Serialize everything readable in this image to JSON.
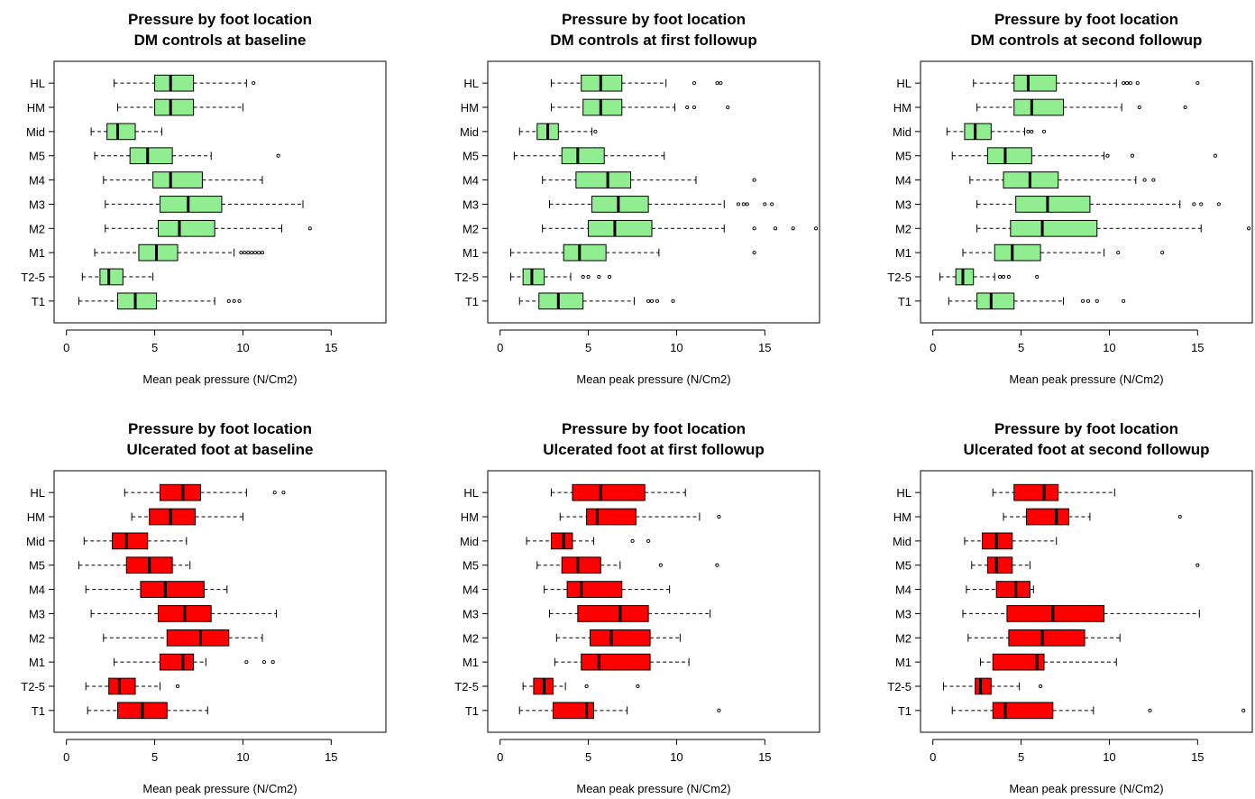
{
  "chart_data": [
    {
      "type": "boxplot",
      "orientation": "horizontal",
      "title": [
        "Pressure by foot location",
        "DM controls at baseline"
      ],
      "xlabel": "Mean peak pressure (N/Cm2)",
      "xlim": [
        -0.7,
        18.1
      ],
      "xticks": [
        0,
        5,
        10,
        15
      ],
      "fill": "#90ee90",
      "categories": [
        "HL",
        "HM",
        "Mid",
        "M5",
        "M4",
        "M3",
        "M2",
        "M1",
        "T2-5",
        "T1"
      ],
      "boxes": [
        {
          "whislo": 2.7,
          "q1": 5.0,
          "med": 5.9,
          "q3": 7.2,
          "whishi": 10.2,
          "fliers": [
            10.6
          ]
        },
        {
          "whislo": 2.9,
          "q1": 5.0,
          "med": 5.9,
          "q3": 7.2,
          "whishi": 10.0,
          "fliers": []
        },
        {
          "whislo": 1.4,
          "q1": 2.3,
          "med": 2.9,
          "q3": 3.9,
          "whishi": 5.4,
          "fliers": []
        },
        {
          "whislo": 1.6,
          "q1": 3.6,
          "med": 4.6,
          "q3": 6.0,
          "whishi": 8.2,
          "fliers": [
            12.0
          ]
        },
        {
          "whislo": 2.1,
          "q1": 4.9,
          "med": 5.9,
          "q3": 7.7,
          "whishi": 11.1,
          "fliers": []
        },
        {
          "whislo": 2.2,
          "q1": 5.3,
          "med": 6.9,
          "q3": 8.8,
          "whishi": 13.4,
          "fliers": []
        },
        {
          "whislo": 2.2,
          "q1": 5.2,
          "med": 6.4,
          "q3": 8.4,
          "whishi": 12.2,
          "fliers": [
            13.8
          ]
        },
        {
          "whislo": 1.6,
          "q1": 4.1,
          "med": 5.1,
          "q3": 6.3,
          "whishi": 9.5,
          "fliers": [
            9.9,
            10.1,
            10.3,
            10.5,
            10.7,
            10.9,
            11.1
          ]
        },
        {
          "whislo": 0.9,
          "q1": 1.9,
          "med": 2.4,
          "q3": 3.2,
          "whishi": 4.9,
          "fliers": []
        },
        {
          "whislo": 0.7,
          "q1": 2.9,
          "med": 3.9,
          "q3": 5.1,
          "whishi": 8.4,
          "fliers": [
            9.2,
            9.5,
            9.8
          ]
        }
      ]
    },
    {
      "type": "boxplot",
      "orientation": "horizontal",
      "title": [
        "Pressure by foot location",
        "DM controls at first followup"
      ],
      "xlabel": "Mean peak pressure (N/Cm2)",
      "xlim": [
        -0.7,
        18.1
      ],
      "xticks": [
        0,
        5,
        10,
        15
      ],
      "fill": "#90ee90",
      "categories": [
        "HL",
        "HM",
        "Mid",
        "M5",
        "M4",
        "M3",
        "M2",
        "M1",
        "T2-5",
        "T1"
      ],
      "boxes": [
        {
          "whislo": 2.9,
          "q1": 4.6,
          "med": 5.7,
          "q3": 6.9,
          "whishi": 9.4,
          "fliers": [
            11.0,
            12.3,
            12.5
          ]
        },
        {
          "whislo": 2.9,
          "q1": 4.7,
          "med": 5.7,
          "q3": 6.9,
          "whishi": 9.9,
          "fliers": [
            10.6,
            11.0,
            12.9
          ]
        },
        {
          "whislo": 1.1,
          "q1": 2.1,
          "med": 2.7,
          "q3": 3.3,
          "whishi": 5.2,
          "fliers": [
            5.4
          ]
        },
        {
          "whislo": 0.8,
          "q1": 3.5,
          "med": 4.4,
          "q3": 5.9,
          "whishi": 9.3,
          "fliers": []
        },
        {
          "whislo": 2.4,
          "q1": 4.3,
          "med": 6.1,
          "q3": 7.4,
          "whishi": 11.1,
          "fliers": [
            14.4
          ]
        },
        {
          "whislo": 2.8,
          "q1": 5.2,
          "med": 6.7,
          "q3": 8.4,
          "whishi": 12.7,
          "fliers": [
            13.5,
            13.8,
            14.0,
            15.0,
            15.4
          ]
        },
        {
          "whislo": 2.4,
          "q1": 5.0,
          "med": 6.5,
          "q3": 8.6,
          "whishi": 12.7,
          "fliers": [
            14.4,
            15.6,
            16.6,
            17.9
          ]
        },
        {
          "whislo": 0.6,
          "q1": 3.6,
          "med": 4.5,
          "q3": 6.0,
          "whishi": 9.0,
          "fliers": [
            14.4
          ]
        },
        {
          "whislo": 0.6,
          "q1": 1.3,
          "med": 1.8,
          "q3": 2.5,
          "whishi": 4.0,
          "fliers": [
            4.7,
            5.0,
            5.6,
            6.2
          ]
        },
        {
          "whislo": 1.1,
          "q1": 2.2,
          "med": 3.3,
          "q3": 4.7,
          "whishi": 7.6,
          "fliers": [
            8.4,
            8.6,
            8.9,
            9.8
          ]
        }
      ]
    },
    {
      "type": "boxplot",
      "orientation": "horizontal",
      "title": [
        "Pressure by foot location",
        "DM controls at second followup"
      ],
      "xlabel": "Mean peak pressure (N/Cm2)",
      "xlim": [
        -0.7,
        18.1
      ],
      "xticks": [
        0,
        5,
        10,
        15
      ],
      "fill": "#90ee90",
      "categories": [
        "HL",
        "HM",
        "Mid",
        "M5",
        "M4",
        "M3",
        "M2",
        "M1",
        "T2-5",
        "T1"
      ],
      "boxes": [
        {
          "whislo": 2.3,
          "q1": 4.6,
          "med": 5.4,
          "q3": 7.0,
          "whishi": 10.4,
          "fliers": [
            10.8,
            11.0,
            11.2,
            11.6,
            15.0
          ]
        },
        {
          "whislo": 2.5,
          "q1": 4.6,
          "med": 5.6,
          "q3": 7.4,
          "whishi": 10.7,
          "fliers": [
            11.7,
            14.3
          ]
        },
        {
          "whislo": 0.8,
          "q1": 1.8,
          "med": 2.4,
          "q3": 3.3,
          "whishi": 5.2,
          "fliers": [
            5.4,
            5.6,
            6.3
          ]
        },
        {
          "whislo": 1.1,
          "q1": 3.1,
          "med": 4.1,
          "q3": 5.6,
          "whishi": 9.7,
          "fliers": [
            9.9,
            11.3,
            16.0
          ]
        },
        {
          "whislo": 2.1,
          "q1": 4.0,
          "med": 5.5,
          "q3": 7.1,
          "whishi": 11.5,
          "fliers": [
            12.0,
            12.5
          ]
        },
        {
          "whislo": 2.5,
          "q1": 4.7,
          "med": 6.5,
          "q3": 8.9,
          "whishi": 14.0,
          "fliers": [
            14.8,
            15.2,
            16.2
          ]
        },
        {
          "whislo": 2.5,
          "q1": 4.4,
          "med": 6.2,
          "q3": 9.3,
          "whishi": 15.2,
          "fliers": [
            17.9
          ]
        },
        {
          "whislo": 1.7,
          "q1": 3.5,
          "med": 4.5,
          "q3": 6.1,
          "whishi": 9.7,
          "fliers": [
            10.5,
            13.0
          ]
        },
        {
          "whislo": 0.4,
          "q1": 1.3,
          "med": 1.7,
          "q3": 2.3,
          "whishi": 3.5,
          "fliers": [
            3.8,
            4.0,
            4.3,
            5.9
          ]
        },
        {
          "whislo": 0.9,
          "q1": 2.5,
          "med": 3.3,
          "q3": 4.6,
          "whishi": 7.4,
          "fliers": [
            8.5,
            8.8,
            9.3,
            10.8
          ]
        }
      ]
    },
    {
      "type": "boxplot",
      "orientation": "horizontal",
      "title": [
        "Pressure by foot location",
        "Ulcerated foot at baseline"
      ],
      "xlabel": "Mean peak pressure (N/Cm2)",
      "xlim": [
        -0.7,
        18.1
      ],
      "xticks": [
        0,
        5,
        10,
        15
      ],
      "fill": "#ff0000",
      "categories": [
        "HL",
        "HM",
        "Mid",
        "M5",
        "M4",
        "M3",
        "M2",
        "M1",
        "T2-5",
        "T1"
      ],
      "boxes": [
        {
          "whislo": 3.3,
          "q1": 5.3,
          "med": 6.6,
          "q3": 7.6,
          "whishi": 10.2,
          "fliers": [
            11.8,
            12.3
          ]
        },
        {
          "whislo": 3.7,
          "q1": 4.7,
          "med": 5.9,
          "q3": 7.3,
          "whishi": 10.0,
          "fliers": []
        },
        {
          "whislo": 1.0,
          "q1": 2.6,
          "med": 3.4,
          "q3": 4.6,
          "whishi": 6.8,
          "fliers": []
        },
        {
          "whislo": 0.7,
          "q1": 3.4,
          "med": 4.7,
          "q3": 6.0,
          "whishi": 7.0,
          "fliers": []
        },
        {
          "whislo": 1.1,
          "q1": 4.2,
          "med": 5.6,
          "q3": 7.8,
          "whishi": 9.1,
          "fliers": []
        },
        {
          "whislo": 1.4,
          "q1": 5.2,
          "med": 6.7,
          "q3": 8.2,
          "whishi": 11.9,
          "fliers": []
        },
        {
          "whislo": 2.1,
          "q1": 5.7,
          "med": 7.6,
          "q3": 9.2,
          "whishi": 11.1,
          "fliers": []
        },
        {
          "whislo": 2.7,
          "q1": 5.3,
          "med": 6.6,
          "q3": 7.2,
          "whishi": 7.9,
          "fliers": [
            10.2,
            11.2,
            11.7
          ]
        },
        {
          "whislo": 1.1,
          "q1": 2.4,
          "med": 3.0,
          "q3": 3.9,
          "whishi": 5.3,
          "fliers": [
            6.3
          ]
        },
        {
          "whislo": 1.2,
          "q1": 2.9,
          "med": 4.3,
          "q3": 5.7,
          "whishi": 8.0,
          "fliers": []
        }
      ]
    },
    {
      "type": "boxplot",
      "orientation": "horizontal",
      "title": [
        "Pressure by foot location",
        "Ulcerated foot at first followup"
      ],
      "xlabel": "Mean peak pressure (N/Cm2)",
      "xlim": [
        -0.7,
        18.1
      ],
      "xticks": [
        0,
        5,
        10,
        15
      ],
      "fill": "#ff0000",
      "categories": [
        "HL",
        "HM",
        "Mid",
        "M5",
        "M4",
        "M3",
        "M2",
        "M1",
        "T2-5",
        "T1"
      ],
      "boxes": [
        {
          "whislo": 2.9,
          "q1": 4.1,
          "med": 5.7,
          "q3": 8.2,
          "whishi": 10.5,
          "fliers": []
        },
        {
          "whislo": 3.4,
          "q1": 4.9,
          "med": 5.5,
          "q3": 7.7,
          "whishi": 11.3,
          "fliers": [
            12.4
          ]
        },
        {
          "whislo": 1.5,
          "q1": 2.9,
          "med": 3.6,
          "q3": 4.1,
          "whishi": 5.3,
          "fliers": [
            7.5,
            8.4
          ]
        },
        {
          "whislo": 2.1,
          "q1": 3.5,
          "med": 4.4,
          "q3": 5.7,
          "whishi": 6.8,
          "fliers": [
            9.1,
            12.3
          ]
        },
        {
          "whislo": 2.5,
          "q1": 3.8,
          "med": 4.6,
          "q3": 6.9,
          "whishi": 9.6,
          "fliers": []
        },
        {
          "whislo": 2.8,
          "q1": 4.4,
          "med": 6.8,
          "q3": 8.4,
          "whishi": 11.9,
          "fliers": []
        },
        {
          "whislo": 3.2,
          "q1": 5.1,
          "med": 6.3,
          "q3": 8.5,
          "whishi": 10.2,
          "fliers": []
        },
        {
          "whislo": 3.1,
          "q1": 4.6,
          "med": 5.6,
          "q3": 8.5,
          "whishi": 10.7,
          "fliers": []
        },
        {
          "whislo": 1.3,
          "q1": 1.9,
          "med": 2.5,
          "q3": 3.0,
          "whishi": 3.7,
          "fliers": [
            4.9,
            7.8
          ]
        },
        {
          "whislo": 1.1,
          "q1": 3.0,
          "med": 4.9,
          "q3": 5.3,
          "whishi": 7.2,
          "fliers": [
            12.4
          ]
        }
      ]
    },
    {
      "type": "boxplot",
      "orientation": "horizontal",
      "title": [
        "Pressure by foot location",
        "Ulcerated foot at second followup"
      ],
      "xlabel": "Mean peak pressure (N/Cm2)",
      "xlim": [
        -0.7,
        18.1
      ],
      "xticks": [
        0,
        5,
        10,
        15
      ],
      "fill": "#ff0000",
      "categories": [
        "HL",
        "HM",
        "Mid",
        "M5",
        "M4",
        "M3",
        "M2",
        "M1",
        "T2-5",
        "T1"
      ],
      "boxes": [
        {
          "whislo": 3.4,
          "q1": 4.6,
          "med": 6.3,
          "q3": 7.1,
          "whishi": 10.3,
          "fliers": []
        },
        {
          "whislo": 4.0,
          "q1": 5.3,
          "med": 7.0,
          "q3": 7.7,
          "whishi": 8.9,
          "fliers": [
            14.0
          ]
        },
        {
          "whislo": 1.8,
          "q1": 2.8,
          "med": 3.6,
          "q3": 4.5,
          "whishi": 7.0,
          "fliers": []
        },
        {
          "whislo": 2.2,
          "q1": 3.1,
          "med": 3.6,
          "q3": 4.5,
          "whishi": 5.5,
          "fliers": [
            15.0
          ]
        },
        {
          "whislo": 1.9,
          "q1": 3.6,
          "med": 4.7,
          "q3": 5.5,
          "whishi": 5.7,
          "fliers": []
        },
        {
          "whislo": 1.7,
          "q1": 4.2,
          "med": 6.8,
          "q3": 9.7,
          "whishi": 15.1,
          "fliers": []
        },
        {
          "whislo": 2.0,
          "q1": 4.3,
          "med": 6.2,
          "q3": 8.6,
          "whishi": 10.6,
          "fliers": []
        },
        {
          "whislo": 2.7,
          "q1": 3.4,
          "med": 5.9,
          "q3": 6.3,
          "whishi": 10.4,
          "fliers": []
        },
        {
          "whislo": 0.6,
          "q1": 2.4,
          "med": 2.7,
          "q3": 3.3,
          "whishi": 4.9,
          "fliers": [
            6.1
          ]
        },
        {
          "whislo": 1.1,
          "q1": 3.4,
          "med": 4.1,
          "q3": 6.8,
          "whishi": 9.1,
          "fliers": [
            12.3,
            17.6
          ]
        }
      ]
    }
  ]
}
